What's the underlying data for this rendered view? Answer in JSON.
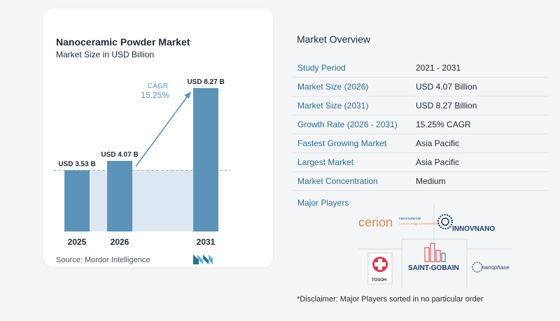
{
  "chart_data": {
    "type": "bar",
    "title": "Nanoceramic Powder Market",
    "subtitle": "Market Size in USD Billion",
    "categories": [
      "2025",
      "2026",
      "2031"
    ],
    "values": [
      3.53,
      4.07,
      8.27
    ],
    "data_labels": [
      "USD 3.53 B",
      "USD 4.07 B",
      "USD 8.27 B"
    ],
    "cagr_label": "CAGR",
    "cagr_value": "15.25%",
    "colors": {
      "bar": "#5b93b9",
      "baseline_fill": "#dde7f1",
      "arrow": "#5b93b9",
      "cagr_text": "#5b93b9"
    },
    "grid": false,
    "legend": "none"
  },
  "source": "Source:  Mordor Intelligence",
  "overview": {
    "title": "Market Overview",
    "rows": [
      {
        "label": "Study Period",
        "value": "2021 - 2031"
      },
      {
        "label": "Market Size (2026)",
        "value": "USD 4.07 Billion"
      },
      {
        "label": "Market Size (2031)",
        "value": "USD 8.27 Billion"
      },
      {
        "label": "Growth Rate (2026 - 2031)",
        "value": "15.25% CAGR"
      },
      {
        "label": "Fastest Growing Market",
        "value": "Asia Pacific"
      },
      {
        "label": "Largest Market",
        "value": "Asia Pacific"
      },
      {
        "label": "Market Concentration",
        "value": "Medium"
      }
    ],
    "players_title": "Major Players"
  },
  "players": {
    "cerion": "cerion",
    "cerion_tag1": "nanomaterials",
    "cerion_tag2": "Custom Design & Manufacturing",
    "innovnano": "INNOVNANO",
    "tosoh": "TOSOH",
    "saint_gobain": "SAINT-GOBAIN",
    "nanophase": "nanophase"
  },
  "disclaimer": "*Disclaimer: Major Players sorted in no particular order"
}
